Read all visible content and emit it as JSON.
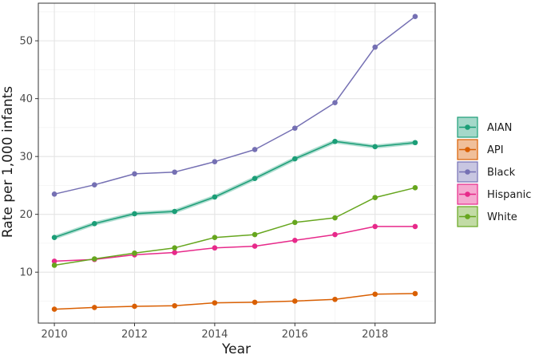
{
  "chart_data": {
    "type": "line",
    "title": "",
    "xlabel": "Year",
    "ylabel": "Rate per 1,000 infants",
    "x": [
      2010,
      2011,
      2012,
      2013,
      2014,
      2015,
      2016,
      2017,
      2018,
      2019
    ],
    "xlim": [
      2009.6,
      2019.5
    ],
    "ylim": [
      1.2,
      56.5
    ],
    "x_ticks": [
      2010,
      2012,
      2014,
      2016,
      2018
    ],
    "y_ticks": [
      10,
      20,
      30,
      40,
      50
    ],
    "x_tick_labels": [
      "2010",
      "2012",
      "2014",
      "2016",
      "2018"
    ],
    "y_tick_labels": [
      "10",
      "20",
      "30",
      "40",
      "50"
    ],
    "grid": true,
    "legend_position": "right",
    "series": [
      {
        "name": "AIAN",
        "color": "#1b9e77",
        "band": true,
        "values": [
          16.0,
          18.4,
          20.1,
          20.5,
          23.0,
          26.2,
          29.6,
          32.6,
          31.7,
          32.4
        ]
      },
      {
        "name": "API",
        "color": "#d95f02",
        "band": false,
        "values": [
          3.6,
          3.9,
          4.1,
          4.2,
          4.7,
          4.8,
          5.0,
          5.3,
          6.2,
          6.3
        ]
      },
      {
        "name": "Black",
        "color": "#7570b3",
        "band": false,
        "values": [
          23.5,
          25.1,
          27.0,
          27.3,
          29.1,
          31.2,
          34.9,
          39.3,
          48.9,
          54.2
        ]
      },
      {
        "name": "Hispanic",
        "color": "#e7298a",
        "band": false,
        "values": [
          11.9,
          12.2,
          13.0,
          13.4,
          14.2,
          14.5,
          15.5,
          16.5,
          17.9,
          17.9
        ]
      },
      {
        "name": "White",
        "color": "#66a61e",
        "band": false,
        "values": [
          11.2,
          12.3,
          13.3,
          14.2,
          16.0,
          16.5,
          18.6,
          19.4,
          22.9,
          24.6
        ]
      }
    ]
  }
}
